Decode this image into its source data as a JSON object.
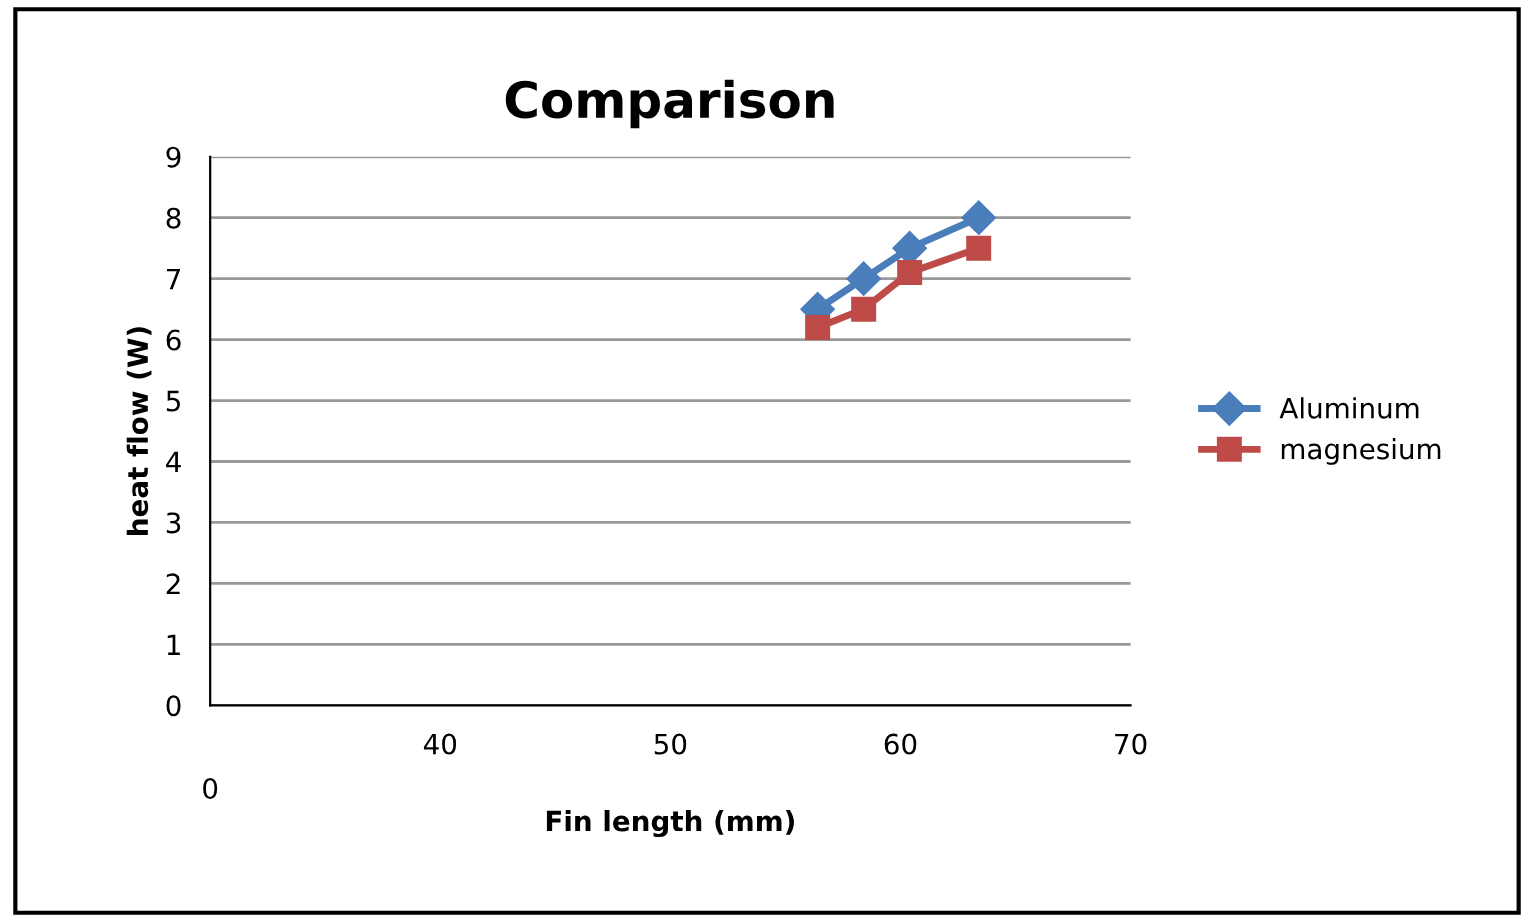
{
  "chart_data": {
    "type": "line",
    "title": "Comparison",
    "xlabel": "Fin length (mm)",
    "ylabel": "heat flow (W)",
    "x": [
      56.4,
      58.4,
      60.4,
      63.4
    ],
    "series": [
      {
        "name": "Aluminum",
        "color": "#4a7ebb",
        "marker": "diamond",
        "values": [
          6.5,
          7.0,
          7.5,
          8.0
        ]
      },
      {
        "name": "magnesium",
        "color": "#be4b48",
        "marker": "square",
        "values": [
          6.2,
          6.5,
          7.1,
          7.5
        ]
      }
    ],
    "xlim": [
      30,
      70
    ],
    "xticks": [
      40,
      50,
      60,
      70
    ],
    "annotations": [
      "0"
    ],
    "ylim": [
      0,
      9
    ],
    "yticks": [
      0,
      1,
      2,
      3,
      4,
      5,
      6,
      7,
      8,
      9
    ],
    "grid": "y",
    "legend": "right"
  }
}
